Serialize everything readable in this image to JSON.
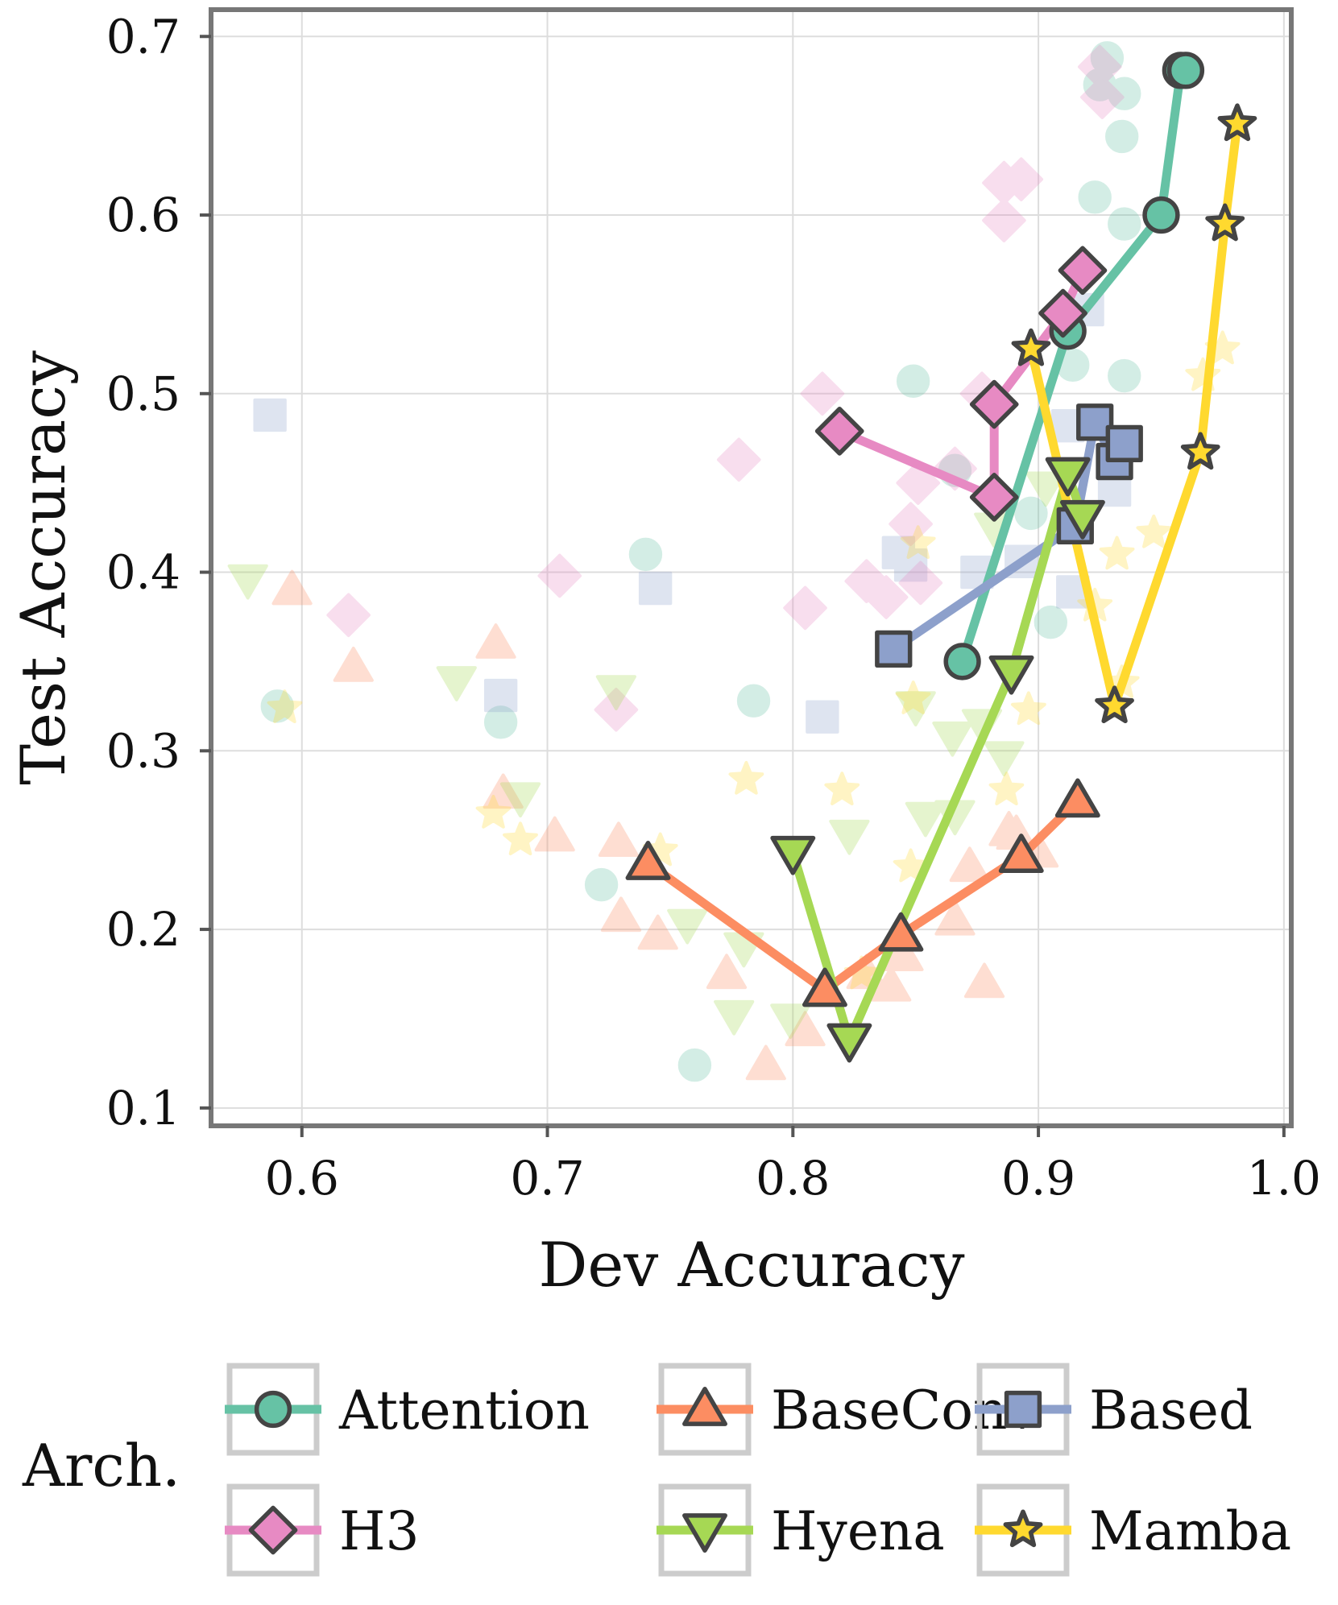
{
  "chart_data": {
    "type": "scatter",
    "title": "",
    "xlabel": "Dev Accuracy",
    "ylabel": "Test Accuracy",
    "xlim": [
      0.563,
      1.003
    ],
    "ylim": [
      0.09,
      0.715
    ],
    "xticks": [
      "0.6",
      "0.7",
      "0.8",
      "0.9",
      "1.0"
    ],
    "xtick_values": [
      0.6,
      0.7,
      0.8,
      0.9,
      1.0
    ],
    "yticks": [
      "0.1",
      "0.2",
      "0.3",
      "0.4",
      "0.5",
      "0.6",
      "0.7"
    ],
    "ytick_values": [
      0.1,
      0.2,
      0.3,
      0.4,
      0.5,
      0.6,
      0.7
    ],
    "grid": true,
    "legend_title": "Arch.",
    "legend_position": "bottom",
    "series": [
      {
        "name": "Attention",
        "color": "#66c2a5",
        "marker": "circle",
        "line": [
          [
            0.869,
            0.35
          ],
          [
            0.912,
            0.535
          ],
          [
            0.95,
            0.6
          ],
          [
            0.958,
            0.681
          ],
          [
            0.96,
            0.681
          ]
        ],
        "background": [
          [
            0.59,
            0.325
          ],
          [
            0.681,
            0.316
          ],
          [
            0.74,
            0.41
          ],
          [
            0.76,
            0.124
          ],
          [
            0.722,
            0.225
          ],
          [
            0.784,
            0.328
          ],
          [
            0.849,
            0.507
          ],
          [
            0.866,
            0.457
          ],
          [
            0.897,
            0.433
          ],
          [
            0.905,
            0.372
          ],
          [
            0.914,
            0.516
          ],
          [
            0.923,
            0.61
          ],
          [
            0.925,
            0.673
          ],
          [
            0.928,
            0.688
          ],
          [
            0.934,
            0.644
          ],
          [
            0.935,
            0.668
          ],
          [
            0.935,
            0.595
          ],
          [
            0.935,
            0.51
          ]
        ]
      },
      {
        "name": "BaseConv",
        "color": "#fc8d62",
        "marker": "triangle-up",
        "line": [
          [
            0.741,
            0.237
          ],
          [
            0.813,
            0.166
          ],
          [
            0.844,
            0.197
          ],
          [
            0.893,
            0.241
          ],
          [
            0.916,
            0.272
          ]
        ],
        "background": [
          [
            0.596,
            0.39
          ],
          [
            0.621,
            0.347
          ],
          [
            0.679,
            0.36
          ],
          [
            0.682,
            0.276
          ],
          [
            0.703,
            0.252
          ],
          [
            0.729,
            0.249
          ],
          [
            0.73,
            0.207
          ],
          [
            0.745,
            0.197
          ],
          [
            0.773,
            0.175
          ],
          [
            0.789,
            0.124
          ],
          [
            0.805,
            0.143
          ],
          [
            0.83,
            0.175
          ],
          [
            0.84,
            0.168
          ],
          [
            0.845,
            0.185
          ],
          [
            0.866,
            0.205
          ],
          [
            0.872,
            0.235
          ],
          [
            0.878,
            0.17
          ],
          [
            0.888,
            0.255
          ],
          [
            0.891,
            0.253
          ],
          [
            0.9,
            0.243
          ]
        ]
      },
      {
        "name": "Based",
        "color": "#8da0cb",
        "marker": "square",
        "line": [
          [
            0.841,
            0.357
          ],
          [
            0.915,
            0.426
          ],
          [
            0.923,
            0.484
          ],
          [
            0.931,
            0.462
          ],
          [
            0.935,
            0.472
          ]
        ],
        "background": [
          [
            0.587,
            0.488
          ],
          [
            0.681,
            0.331
          ],
          [
            0.744,
            0.391
          ],
          [
            0.812,
            0.319
          ],
          [
            0.843,
            0.411
          ],
          [
            0.848,
            0.404
          ],
          [
            0.875,
            0.4
          ],
          [
            0.893,
            0.406
          ],
          [
            0.912,
            0.482
          ],
          [
            0.914,
            0.389
          ],
          [
            0.92,
            0.547
          ],
          [
            0.931,
            0.446
          ]
        ]
      },
      {
        "name": "H3",
        "color": "#e78ac3",
        "marker": "diamond",
        "line": [
          [
            0.819,
            0.479
          ],
          [
            0.882,
            0.442
          ],
          [
            0.882,
            0.494
          ],
          [
            0.91,
            0.545
          ],
          [
            0.918,
            0.569
          ]
        ],
        "background": [
          [
            0.619,
            0.376
          ],
          [
            0.705,
            0.398
          ],
          [
            0.728,
            0.323
          ],
          [
            0.778,
            0.463
          ],
          [
            0.805,
            0.38
          ],
          [
            0.812,
            0.5
          ],
          [
            0.83,
            0.395
          ],
          [
            0.838,
            0.386
          ],
          [
            0.848,
            0.427
          ],
          [
            0.851,
            0.45
          ],
          [
            0.852,
            0.394
          ],
          [
            0.866,
            0.458
          ],
          [
            0.877,
            0.5
          ],
          [
            0.886,
            0.597
          ],
          [
            0.886,
            0.618
          ],
          [
            0.893,
            0.62
          ],
          [
            0.925,
            0.683
          ],
          [
            0.926,
            0.666
          ]
        ]
      },
      {
        "name": "Hyena",
        "color": "#a6d854",
        "marker": "triangle-down",
        "line": [
          [
            0.8,
            0.243
          ],
          [
            0.823,
            0.138
          ],
          [
            0.889,
            0.344
          ],
          [
            0.912,
            0.455
          ],
          [
            0.918,
            0.431
          ]
        ],
        "background": [
          [
            0.578,
            0.396
          ],
          [
            0.663,
            0.339
          ],
          [
            0.689,
            0.274
          ],
          [
            0.728,
            0.334
          ],
          [
            0.757,
            0.203
          ],
          [
            0.78,
            0.19
          ],
          [
            0.776,
            0.152
          ],
          [
            0.799,
            0.15
          ],
          [
            0.823,
            0.253
          ],
          [
            0.85,
            0.325
          ],
          [
            0.854,
            0.263
          ],
          [
            0.865,
            0.308
          ],
          [
            0.866,
            0.264
          ],
          [
            0.877,
            0.315
          ],
          [
            0.882,
            0.425
          ],
          [
            0.886,
            0.297
          ],
          [
            0.903,
            0.448
          ]
        ]
      },
      {
        "name": "Mamba",
        "color": "#ffd92f",
        "marker": "star",
        "line": [
          [
            0.897,
            0.525
          ],
          [
            0.931,
            0.325
          ],
          [
            0.966,
            0.467
          ],
          [
            0.976,
            0.595
          ],
          [
            0.981,
            0.651
          ]
        ],
        "background": [
          [
            0.593,
            0.324
          ],
          [
            0.678,
            0.265
          ],
          [
            0.689,
            0.25
          ],
          [
            0.746,
            0.244
          ],
          [
            0.781,
            0.284
          ],
          [
            0.82,
            0.278
          ],
          [
            0.828,
            0.175
          ],
          [
            0.848,
            0.235
          ],
          [
            0.849,
            0.329
          ],
          [
            0.851,
            0.416
          ],
          [
            0.887,
            0.278
          ],
          [
            0.896,
            0.323
          ],
          [
            0.923,
            0.381
          ],
          [
            0.932,
            0.41
          ],
          [
            0.934,
            0.338
          ],
          [
            0.947,
            0.422
          ],
          [
            0.967,
            0.51
          ],
          [
            0.975,
            0.525
          ]
        ]
      }
    ]
  }
}
